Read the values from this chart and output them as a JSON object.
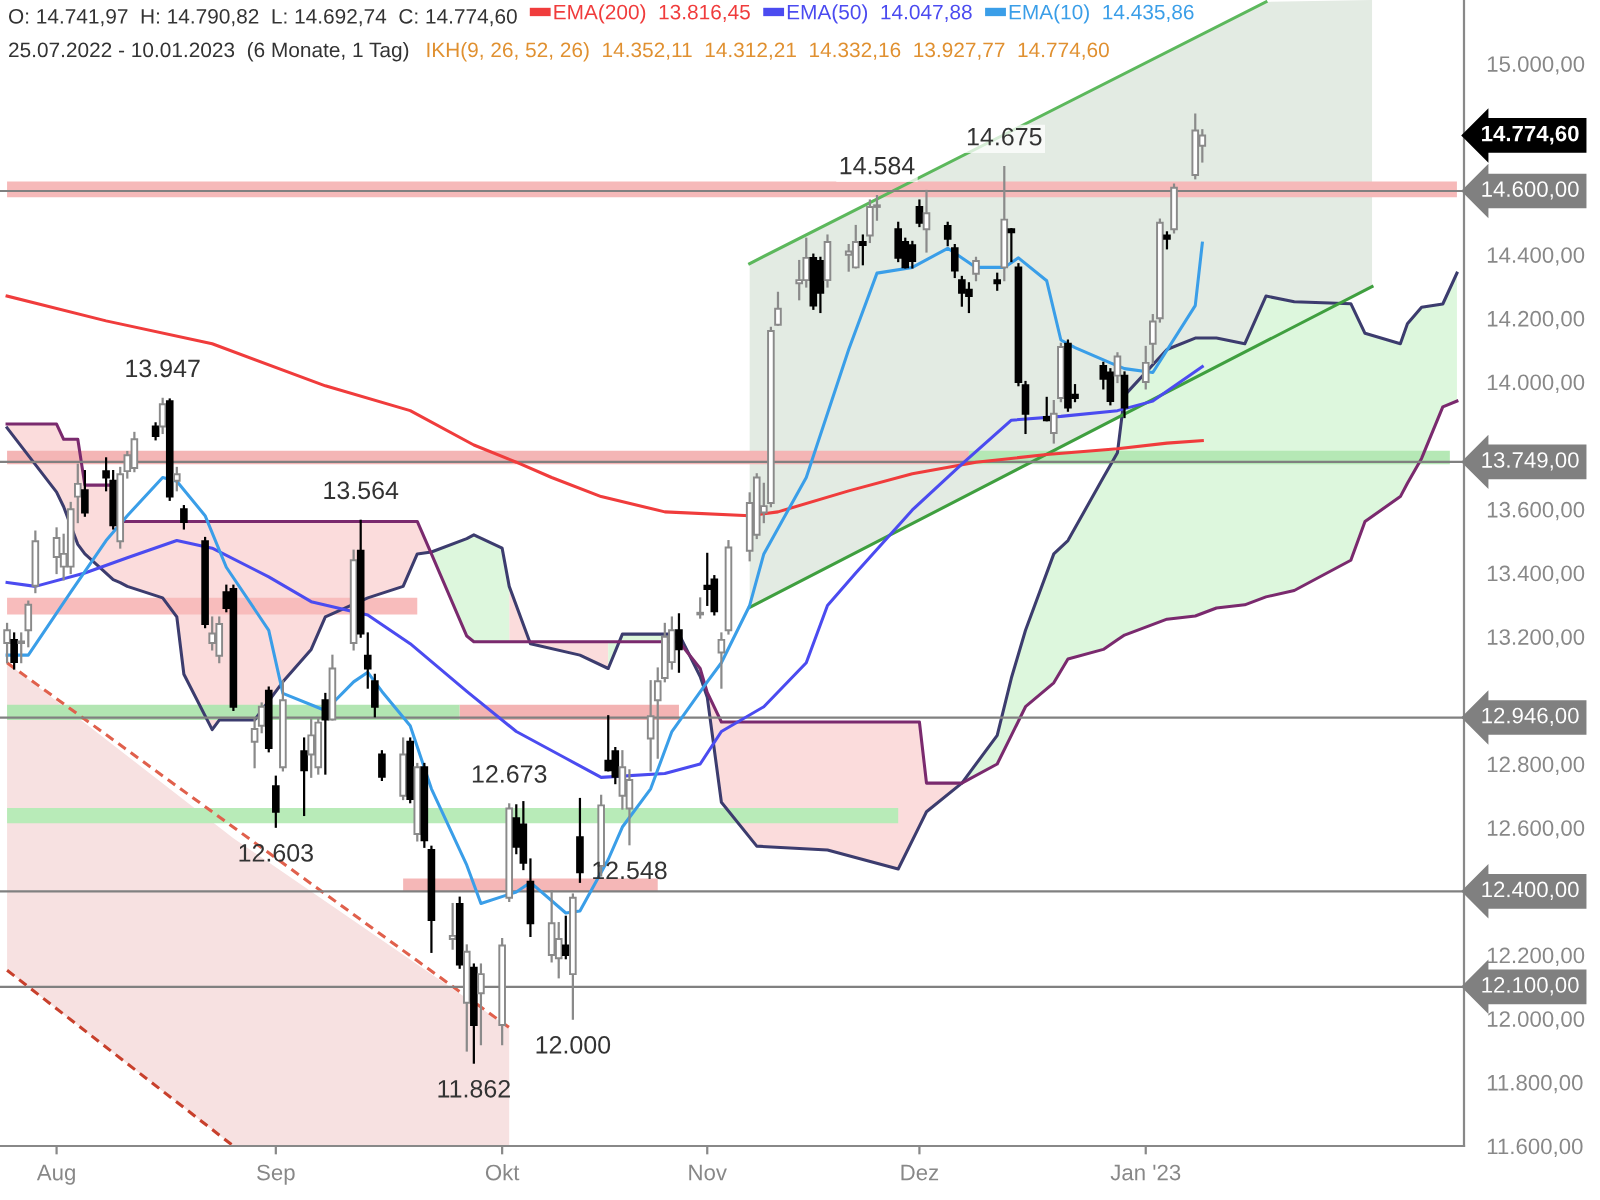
{
  "chart_data": {
    "type": "candlestick",
    "x": [
      "2022-07-25",
      "2022-07-26",
      "2022-07-27",
      "2022-07-28",
      "2022-07-29",
      "2022-08-01",
      "2022-08-02",
      "2022-08-03",
      "2022-08-04",
      "2022-08-05",
      "2022-08-08",
      "2022-08-09",
      "2022-08-10",
      "2022-08-11",
      "2022-08-12",
      "2022-08-15",
      "2022-08-16",
      "2022-08-17",
      "2022-08-18",
      "2022-08-19",
      "2022-08-22",
      "2022-08-23",
      "2022-08-24",
      "2022-08-25",
      "2022-08-26",
      "2022-08-29",
      "2022-08-30",
      "2022-08-31",
      "2022-09-01",
      "2022-09-02",
      "2022-09-05",
      "2022-09-06",
      "2022-09-07",
      "2022-09-08",
      "2022-09-09",
      "2022-09-12",
      "2022-09-13",
      "2022-09-14",
      "2022-09-15",
      "2022-09-16",
      "2022-09-19",
      "2022-09-20",
      "2022-09-21",
      "2022-09-22",
      "2022-09-23",
      "2022-09-26",
      "2022-09-27",
      "2022-09-28",
      "2022-09-29",
      "2022-09-30",
      "2022-10-03",
      "2022-10-04",
      "2022-10-05",
      "2022-10-06",
      "2022-10-07",
      "2022-10-10",
      "2022-10-11",
      "2022-10-12",
      "2022-10-13",
      "2022-10-14",
      "2022-10-17",
      "2022-10-18",
      "2022-10-19",
      "2022-10-20",
      "2022-10-21",
      "2022-10-24",
      "2022-10-25",
      "2022-10-26",
      "2022-10-27",
      "2022-10-28",
      "2022-10-31",
      "2022-11-01",
      "2022-11-02",
      "2022-11-03",
      "2022-11-04",
      "2022-11-07",
      "2022-11-08",
      "2022-11-09",
      "2022-11-10",
      "2022-11-11",
      "2022-11-14",
      "2022-11-15",
      "2022-11-16",
      "2022-11-17",
      "2022-11-18",
      "2022-11-21",
      "2022-11-22",
      "2022-11-23",
      "2022-11-24",
      "2022-11-25",
      "2022-11-28",
      "2022-11-29",
      "2022-11-30",
      "2022-12-01",
      "2022-12-02",
      "2022-12-05",
      "2022-12-06",
      "2022-12-07",
      "2022-12-08",
      "2022-12-09",
      "2022-12-12",
      "2022-12-13",
      "2022-12-14",
      "2022-12-15",
      "2022-12-16",
      "2022-12-19",
      "2022-12-20",
      "2022-12-21",
      "2022-12-22",
      "2022-12-23",
      "2022-12-27",
      "2022-12-28",
      "2022-12-29",
      "2022-12-30",
      "2023-01-02",
      "2023-01-03",
      "2023-01-04",
      "2023-01-05",
      "2023-01-06",
      "2023-01-09",
      "2023-01-10"
    ],
    "xlim": [
      "2022-07-24",
      "2023-02-16"
    ],
    "xticks": [
      {
        "value": "2022-08-01",
        "label": "Aug"
      },
      {
        "value": "2022-09-01",
        "label": "Sep"
      },
      {
        "value": "2022-10-03",
        "label": "Okt"
      },
      {
        "value": "2022-11-01",
        "label": "Nov"
      },
      {
        "value": "2022-12-01",
        "label": "Dez"
      },
      {
        "value": "2023-01-02",
        "label": "Jan '23"
      }
    ],
    "ohlc": [
      [
        13180,
        13240,
        13120,
        13220
      ],
      [
        13190,
        13210,
        13100,
        13120
      ],
      [
        13180,
        13210,
        13120,
        13185
      ],
      [
        13220,
        13310,
        13170,
        13300
      ],
      [
        13360,
        13530,
        13340,
        13500
      ],
      [
        13450,
        13540,
        13400,
        13510
      ],
      [
        13420,
        13520,
        13380,
        13460
      ],
      [
        13420,
        13620,
        13400,
        13600
      ],
      [
        13640,
        13740,
        13560,
        13680
      ],
      [
        13660,
        13720,
        13580,
        13590
      ],
      [
        13720,
        13760,
        13660,
        13700
      ],
      [
        13690,
        13720,
        13540,
        13550
      ],
      [
        13500,
        13730,
        13480,
        13710
      ],
      [
        13720,
        13780,
        13700,
        13770
      ],
      [
        13730,
        13840,
        13720,
        13820
      ],
      [
        13860,
        13870,
        13820,
        13830
      ],
      [
        13860,
        13947,
        13840,
        13930
      ],
      [
        13940,
        13945,
        13630,
        13640
      ],
      [
        13690,
        13730,
        13660,
        13710
      ],
      [
        13600,
        13610,
        13540,
        13560
      ],
      [
        13500,
        13510,
        13230,
        13240
      ],
      [
        13180,
        13260,
        13160,
        13210
      ],
      [
        13140,
        13260,
        13120,
        13240
      ],
      [
        13340,
        13360,
        13280,
        13290
      ],
      [
        13350,
        13360,
        12970,
        12980
      ],
      [
        12870,
        12940,
        12790,
        12910
      ],
      [
        12920,
        12990,
        12900,
        12980
      ],
      [
        13030,
        13040,
        12840,
        12850
      ],
      [
        12730,
        12760,
        12603,
        12650
      ],
      [
        12790,
        13060,
        12780,
        13000
      ],
      [
        12840,
        12880,
        12640,
        12780
      ],
      [
        12830,
        12940,
        12760,
        12890
      ],
      [
        12790,
        12940,
        12770,
        12930
      ],
      [
        13000,
        13020,
        12770,
        12940
      ],
      [
        12940,
        13140,
        12940,
        13100
      ],
      [
        13180,
        13470,
        13160,
        13440
      ],
      [
        13470,
        13564,
        13200,
        13210
      ],
      [
        13140,
        13210,
        13040,
        13100
      ],
      [
        13060,
        13080,
        12950,
        12980
      ],
      [
        12830,
        12840,
        12750,
        12760
      ],
      [
        12700,
        12880,
        12690,
        12830
      ],
      [
        12870,
        12880,
        12680,
        12690
      ],
      [
        12580,
        12800,
        12560,
        12790
      ],
      [
        12790,
        12800,
        12540,
        12560
      ],
      [
        12530,
        12540,
        12210,
        12310
      ],
      [
        12250,
        12360,
        12220,
        12260
      ],
      [
        12360,
        12380,
        12160,
        12170
      ],
      [
        12050,
        12230,
        11900,
        12210
      ],
      [
        12160,
        12170,
        11862,
        11980
      ],
      [
        12080,
        12170,
        11920,
        12140
      ],
      [
        11980,
        12250,
        11920,
        12230
      ],
      [
        12380,
        12673,
        12370,
        12660
      ],
      [
        12630,
        12670,
        12520,
        12540
      ],
      [
        12610,
        12680,
        12470,
        12490
      ],
      [
        12430,
        12500,
        12260,
        12300
      ],
      [
        12200,
        12400,
        12180,
        12300
      ],
      [
        12190,
        12300,
        12130,
        12250
      ],
      [
        12230,
        12320,
        12190,
        12200
      ],
      [
        12140,
        12390,
        12000,
        12380
      ],
      [
        12570,
        12690,
        12430,
        12460
      ],
      [
        12480,
        12700,
        12450,
        12670
      ],
      [
        12810,
        12950,
        12780,
        12780
      ],
      [
        12840,
        12850,
        12740,
        12760
      ],
      [
        12700,
        12840,
        12660,
        12790
      ],
      [
        12660,
        12780,
        12548,
        12750
      ],
      [
        12880,
        13060,
        12780,
        12950
      ],
      [
        13000,
        13100,
        12820,
        13060
      ],
      [
        13070,
        13240,
        13060,
        13200
      ],
      [
        13120,
        13260,
        13100,
        13220
      ],
      [
        13220,
        13270,
        13090,
        13160
      ],
      [
        13270,
        13320,
        13260,
        13275
      ],
      [
        13360,
        13460,
        13300,
        13350
      ],
      [
        13380,
        13390,
        13270,
        13280
      ],
      [
        13150,
        13210,
        13040,
        13190
      ],
      [
        13220,
        13500,
        13210,
        13480
      ],
      [
        13470,
        13650,
        13440,
        13620
      ],
      [
        13520,
        13710,
        13510,
        13700
      ],
      [
        13590,
        13680,
        13560,
        13610
      ],
      [
        13620,
        14170,
        13610,
        14160
      ],
      [
        14180,
        14280,
        14180,
        14230
      ],
      [
        14310,
        14380,
        14260,
        14320
      ],
      [
        14320,
        14450,
        14300,
        14390
      ],
      [
        14390,
        14400,
        14230,
        14240
      ],
      [
        14380,
        14390,
        14220,
        14280
      ],
      [
        14320,
        14460,
        14300,
        14440
      ],
      [
        14400,
        14430,
        14350,
        14410
      ],
      [
        14360,
        14490,
        14360,
        14440
      ],
      [
        14440,
        14460,
        14370,
        14430
      ],
      [
        14460,
        14570,
        14440,
        14550
      ],
      [
        14550,
        14584,
        14510,
        14555
      ],
      [
        14480,
        14500,
        14380,
        14390
      ],
      [
        14440,
        14450,
        14360,
        14360
      ],
      [
        14430,
        14440,
        14360,
        14380
      ],
      [
        14550,
        14570,
        14490,
        14500
      ],
      [
        14480,
        14600,
        14410,
        14530
      ],
      [
        14490,
        14500,
        14430,
        14450
      ],
      [
        14420,
        14430,
        14330,
        14350
      ],
      [
        14320,
        14330,
        14240,
        14280
      ],
      [
        14290,
        14310,
        14220,
        14270
      ],
      [
        14340,
        14390,
        14320,
        14380
      ],
      [
        14320,
        14340,
        14290,
        14310
      ],
      [
        14360,
        14675,
        14320,
        14510
      ],
      [
        14480,
        14480,
        14380,
        14470
      ],
      [
        14360,
        14370,
        13990,
        14000
      ],
      [
        13990,
        14000,
        13840,
        13900
      ],
      [
        13890,
        13950,
        13880,
        13880
      ],
      [
        13840,
        13940,
        13810,
        13900
      ],
      [
        13950,
        14120,
        13940,
        14110
      ],
      [
        14120,
        14130,
        13910,
        13920
      ],
      [
        13960,
        13990,
        13940,
        13950
      ],
      [
        14050,
        14060,
        13980,
        14010
      ],
      [
        14030,
        14040,
        13930,
        13940
      ],
      [
        14020,
        14090,
        14000,
        14080
      ],
      [
        14020,
        14030,
        13890,
        13920
      ],
      [
        14000,
        14110,
        13980,
        14060
      ],
      [
        14120,
        14210,
        14060,
        14190
      ],
      [
        14200,
        14510,
        14190,
        14500
      ],
      [
        14460,
        14470,
        14420,
        14450
      ],
      [
        14480,
        14620,
        14470,
        14610
      ],
      [
        14650,
        14840,
        14640,
        14790
      ],
      [
        14741.97,
        14790.82,
        14692.74,
        14774.6
      ]
    ],
    "series": [
      {
        "type": "line",
        "x": [
          "2022-07-25",
          "2022-08-26",
          "2022-10-04"
        ],
        "values": [
          null,
          null,
          null
        ],
        "lower": [
          12152,
          11600,
          11600
        ],
        "upper": [
          13118,
          12567,
          11972
        ],
        "color": "#f7e1e1"
      },
      {
        "type": "line",
        "x": [
          "2022-11-07",
          "2023-01-19",
          "2023-02-03"
        ],
        "values": [
          null,
          null,
          null
        ],
        "lower": [
          13292,
          14124,
          14300
        ],
        "upper": [
          14372,
          15194,
          15200
        ],
        "color": "#e3ebe3"
      },
      {
        "type": "line",
        "x": [
          "2022-07-25",
          "2023-02-15"
        ],
        "values": [
          null,
          null
        ],
        "lower": [
          14580,
          14580
        ],
        "upper": [
          14630,
          14630
        ],
        "color": "#f6b9b9"
      },
      {
        "type": "line",
        "x": [
          "2022-07-25",
          "2022-12-08"
        ],
        "values": [
          null,
          null
        ],
        "lower": [
          13742,
          13742
        ],
        "upper": [
          13784,
          13784
        ],
        "color": "#f4b5b5"
      },
      {
        "type": "line",
        "x": [
          "2022-12-08",
          "2023-02-14"
        ],
        "values": [
          null,
          null
        ],
        "lower": [
          13742,
          13742
        ],
        "upper": [
          13784,
          13784
        ],
        "color": "#b5e8b5"
      },
      {
        "type": "line",
        "x": [
          "2022-07-25",
          "2022-09-21"
        ],
        "values": [
          null,
          null
        ],
        "lower": [
          13270,
          13270
        ],
        "upper": [
          13322,
          13322
        ],
        "color": "#f8bcbc"
      },
      {
        "type": "line",
        "x": [
          "2022-07-25",
          "2022-09-27"
        ],
        "values": [
          null,
          null
        ],
        "lower": [
          12938,
          12938
        ],
        "upper": [
          12986,
          12986
        ],
        "color": "#b2e5b2"
      },
      {
        "type": "line",
        "x": [
          "2022-09-27",
          "2022-10-28"
        ],
        "values": [
          null,
          null
        ],
        "lower": [
          12938,
          12938
        ],
        "upper": [
          12986,
          12986
        ],
        "color": "#f3b3b3"
      },
      {
        "type": "line",
        "x": [
          "2022-07-25",
          "2022-11-28"
        ],
        "values": [
          null,
          null
        ],
        "lower": [
          12614,
          12614
        ],
        "upper": [
          12662,
          12662
        ],
        "color": "#b8ebb8"
      },
      {
        "type": "line",
        "x": [
          "2022-09-19",
          "2022-10-25"
        ],
        "values": [
          null,
          null
        ],
        "lower": [
          12398,
          12398
        ],
        "upper": [
          12440,
          12440
        ],
        "color": "#f5b7b7"
      },
      {
        "type": "line",
        "x": [
          "2022-07-25",
          "2022-08-01",
          "2022-08-02",
          "2022-08-04",
          "2022-08-05",
          "2022-08-09",
          "2022-08-10",
          "2022-08-11",
          "2022-08-16",
          "2022-08-18",
          "2022-08-19",
          "2022-08-23",
          "2022-08-24",
          "2022-08-29",
          "2022-09-02",
          "2022-09-06",
          "2022-09-08",
          "2022-09-14",
          "2022-09-19",
          "2022-09-21",
          "2022-09-23",
          "2022-09-28",
          "2022-09-29",
          "2022-10-03",
          "2022-10-04",
          "2022-10-07",
          "2022-10-14",
          "2022-10-18",
          "2022-10-20",
          "2022-10-28",
          "2022-10-31",
          "2022-11-01",
          "2022-11-03",
          "2022-11-08",
          "2022-11-18",
          "2022-11-28",
          "2022-12-01",
          "2022-12-02",
          "2022-12-07"
        ],
        "values": [
          null,
          null,
          null,
          null,
          null,
          null,
          null,
          null,
          null,
          null,
          null,
          null,
          null,
          null,
          null,
          null,
          null,
          null,
          null,
          null,
          null,
          null,
          null,
          null,
          null,
          null,
          null,
          null,
          null,
          null,
          null,
          null,
          null,
          null,
          null,
          null,
          null,
          null,
          null
        ],
        "lower": [
          13856,
          13654,
          13608,
          13490,
          13460,
          13379,
          13370,
          13358,
          13322,
          13262,
          13082,
          12908,
          12938,
          12938,
          13058,
          13160,
          13262,
          13322,
          13358,
          13460,
          13466,
          null,
          null,
          null,
          13358,
          13178,
          13142,
          13100,
          null,
          null,
          13075,
          13010,
          12680,
          12542,
          12530,
          12470,
          12605,
          12650,
          12740
        ],
        "upper": [
          13868,
          13868,
          13820,
          13820,
          13676,
          13676,
          13562,
          13562,
          13562,
          13562,
          13562,
          13562,
          13562,
          13562,
          13562,
          13562,
          13562,
          13562,
          13562,
          13562,
          13460,
          null,
          null,
          null,
          13184,
          13184,
          13184,
          13184,
          null,
          null,
          13100,
          13025,
          12932,
          12932,
          12932,
          12932,
          12932,
          12740,
          12740
        ],
        "color": "#fbdcdc"
      },
      {
        "type": "line",
        "x": [
          "2022-09-23",
          "2022-09-28",
          "2022-09-29",
          "2022-10-03",
          "2022-10-04",
          "2022-10-07",
          "2022-10-14",
          "2022-10-18",
          "2022-10-20",
          "2022-10-28",
          "2022-10-31",
          "2022-11-01",
          "2022-11-03",
          "2022-11-08",
          "2022-11-18",
          "2022-11-28",
          "2022-12-01",
          "2022-12-02",
          "2022-12-07",
          "2022-12-12",
          "2022-12-14",
          "2022-12-16",
          "2022-12-20",
          "2022-12-22",
          "2022-12-27",
          "2022-12-29",
          "2022-12-30",
          "2023-01-05",
          "2023-01-09",
          "2023-01-12",
          "2023-01-16",
          "2023-01-19",
          "2023-01-23",
          "2023-01-31",
          "2023-02-02",
          "2023-02-07",
          "2023-02-08",
          "2023-02-10",
          "2023-02-13",
          "2023-02-15"
        ],
        "values": [
          null,
          null,
          null,
          null,
          null,
          null,
          null,
          null,
          null,
          null,
          null,
          null,
          null,
          null,
          null,
          null,
          null,
          null,
          null,
          null,
          null,
          null,
          null,
          null,
          null,
          null,
          null,
          null,
          null,
          null,
          null,
          null,
          null,
          null,
          null,
          null,
          null,
          null,
          null,
          null
        ],
        "lower": [
          13460,
          13202,
          13184,
          13184,
          13184,
          null,
          null,
          13184,
          13184,
          13184,
          13100,
          null,
          null,
          null,
          null,
          null,
          null,
          null,
          12740,
          12800,
          12890,
          12980,
          13055,
          13130,
          13160,
          13190,
          13205,
          13255,
          13265,
          13290,
          13300,
          13325,
          13345,
          13440,
          13562,
          13640,
          13682,
          13760,
          13922,
          13940
        ],
        "upper": [
          13466,
          13508,
          13520,
          13478,
          13358,
          null,
          null,
          13100,
          13208,
          13208,
          13075,
          null,
          null,
          null,
          null,
          null,
          null,
          null,
          12740,
          12890,
          13070,
          13220,
          13460,
          13502,
          13700,
          13778,
          13958,
          14102,
          14138,
          14138,
          14120,
          14270,
          14252,
          14246,
          14153,
          14120,
          14183,
          14235,
          14245,
          14342
        ],
        "color": "#ddf7dd"
      },
      {
        "type": "line",
        "x": [
          "2022-07-25",
          "2022-08-01",
          "2022-08-02",
          "2022-08-04",
          "2022-08-05",
          "2022-08-09",
          "2022-08-10",
          "2022-08-11",
          "2022-08-16",
          "2022-08-18",
          "2022-08-19",
          "2022-08-23",
          "2022-08-24",
          "2022-08-29",
          "2022-09-02",
          "2022-09-06",
          "2022-09-08",
          "2022-09-14",
          "2022-09-19",
          "2022-09-21",
          "2022-09-23",
          "2022-09-28",
          "2022-09-29",
          "2022-10-03",
          "2022-10-04",
          "2022-10-07",
          "2022-10-14",
          "2022-10-18",
          "2022-10-20",
          "2022-10-28",
          "2022-10-31",
          "2022-11-01",
          "2022-11-03",
          "2022-11-08",
          "2022-11-18",
          "2022-11-28",
          "2022-12-01",
          "2022-12-02",
          "2022-12-07",
          "2022-12-12",
          "2022-12-14",
          "2022-12-16",
          "2022-12-20",
          "2022-12-22",
          "2022-12-27",
          "2022-12-29",
          "2022-12-30",
          "2023-01-05",
          "2023-01-09",
          "2023-01-12",
          "2023-01-16",
          "2023-01-19",
          "2023-01-23",
          "2023-01-31",
          "2023-02-02",
          "2023-02-07",
          "2023-02-08",
          "2023-02-10",
          "2023-02-13",
          "2023-02-15"
        ],
        "values": [
          13856,
          13654,
          13608,
          13490,
          13460,
          13379,
          13370,
          13358,
          13322,
          13262,
          13082,
          12908,
          12938,
          12938,
          13058,
          13160,
          13262,
          13322,
          13358,
          13460,
          13466,
          13508,
          13520,
          13478,
          13358,
          13178,
          13142,
          13100,
          13208,
          13208,
          13075,
          13010,
          12680,
          12542,
          12530,
          12470,
          12605,
          12650,
          12740,
          12890,
          13070,
          13220,
          13460,
          13502,
          13700,
          13778,
          13958,
          14102,
          14138,
          14138,
          14120,
          14270,
          14252,
          14246,
          14153,
          14120,
          14183,
          14235,
          14245,
          14342
        ],
        "color": "#3c3c6e"
      },
      {
        "type": "line",
        "x": [
          "2022-07-25",
          "2022-08-01",
          "2022-08-02",
          "2022-08-04",
          "2022-08-05",
          "2022-08-09",
          "2022-08-10",
          "2022-08-11",
          "2022-08-16",
          "2022-08-18",
          "2022-08-19",
          "2022-08-23",
          "2022-08-24",
          "2022-08-29",
          "2022-09-02",
          "2022-09-06",
          "2022-09-08",
          "2022-09-14",
          "2022-09-19",
          "2022-09-21",
          "2022-09-23",
          "2022-09-28",
          "2022-09-29",
          "2022-10-03",
          "2022-10-04",
          "2022-10-07",
          "2022-10-14",
          "2022-10-18",
          "2022-10-20",
          "2022-10-28",
          "2022-10-31",
          "2022-11-01",
          "2022-11-03",
          "2022-11-08",
          "2022-11-18",
          "2022-11-28",
          "2022-12-01",
          "2022-12-02",
          "2022-12-07",
          "2022-12-12",
          "2022-12-14",
          "2022-12-16",
          "2022-12-20",
          "2022-12-22",
          "2022-12-27",
          "2022-12-29",
          "2022-12-30",
          "2023-01-05",
          "2023-01-09",
          "2023-01-12",
          "2023-01-16",
          "2023-01-19",
          "2023-01-23",
          "2023-01-31",
          "2023-02-02",
          "2023-02-07",
          "2023-02-08",
          "2023-02-10",
          "2023-02-13",
          "2023-02-15"
        ],
        "values": [
          13868,
          13868,
          13820,
          13820,
          13676,
          13676,
          13562,
          13562,
          13562,
          13562,
          13562,
          13562,
          13562,
          13562,
          13562,
          13562,
          13562,
          13562,
          13562,
          13562,
          13460,
          13202,
          13184,
          13184,
          13184,
          13184,
          13184,
          13184,
          13184,
          13184,
          13100,
          13025,
          12932,
          12932,
          12932,
          12932,
          12932,
          12740,
          12740,
          12800,
          12890,
          12980,
          13055,
          13130,
          13160,
          13190,
          13205,
          13255,
          13265,
          13290,
          13300,
          13325,
          13345,
          13440,
          13562,
          13640,
          13682,
          13760,
          13922,
          13940
        ],
        "color": "#7a2a6e"
      },
      {
        "type": "line",
        "x": [
          "2022-07-25",
          "2022-10-04"
        ],
        "values": [
          13118,
          11972
        ],
        "color": "#e0604c",
        "line_style": "dashed"
      },
      {
        "type": "line",
        "x": [
          "2022-07-25",
          "2022-08-26"
        ],
        "values": [
          12152,
          11600
        ],
        "color": "#c8402c",
        "line_style": "dashed"
      },
      {
        "type": "line",
        "x": [
          "2022-11-07",
          "2023-01-19"
        ],
        "values": [
          14372,
          15194
        ],
        "color": "#5cb85c"
      },
      {
        "type": "line",
        "x": [
          "2022-11-07",
          "2023-02-03"
        ],
        "values": [
          13292,
          14300
        ],
        "color": "#3f9f3f"
      },
      {
        "type": "line",
        "name": "EMA(200)  13.816,45",
        "x": [
          "2022-07-25",
          "2022-08-08",
          "2022-08-23",
          "2022-09-08",
          "2022-09-20",
          "2022-09-29",
          "2022-10-05",
          "2022-10-10",
          "2022-10-17",
          "2022-10-26",
          "2022-11-07",
          "2022-11-11",
          "2022-11-21",
          "2022-11-30",
          "2022-12-09",
          "2022-12-19",
          "2022-12-29",
          "2023-01-05",
          "2023-01-10"
        ],
        "values": [
          14270,
          14192,
          14120,
          13988,
          13910,
          13802,
          13748,
          13700,
          13640,
          13592,
          13580,
          13592,
          13658,
          13712,
          13748,
          13772,
          13790,
          13808,
          13816
        ],
        "color": "#f03c3c"
      },
      {
        "type": "line",
        "name": "EMA(50)  14.047,88",
        "x": [
          "2022-07-25",
          "2022-07-29",
          "2022-08-05",
          "2022-08-11",
          "2022-08-18",
          "2022-08-23",
          "2022-08-31",
          "2022-09-06",
          "2022-09-14",
          "2022-09-20",
          "2022-09-28",
          "2022-10-05",
          "2022-10-12",
          "2022-10-17",
          "2022-10-26",
          "2022-10-31",
          "2022-11-03",
          "2022-11-09",
          "2022-11-15",
          "2022-11-18",
          "2022-11-22",
          "2022-11-30",
          "2022-12-07",
          "2022-12-14",
          "2022-12-21",
          "2022-12-29",
          "2023-01-03",
          "2023-01-10"
        ],
        "values": [
          13370,
          13358,
          13400,
          13448,
          13502,
          13478,
          13388,
          13310,
          13268,
          13178,
          13028,
          12902,
          12818,
          12758,
          12770,
          12800,
          12902,
          12980,
          13118,
          13298,
          13400,
          13598,
          13742,
          13880,
          13892,
          13910,
          13940,
          14048
        ],
        "color": "#4b4bf0"
      },
      {
        "type": "line",
        "name": "EMA(10)  14.435,86",
        "x": [
          "2022-07-25",
          "2022-07-28",
          "2022-08-03",
          "2022-08-08",
          "2022-08-11",
          "2022-08-16",
          "2022-08-18",
          "2022-08-22",
          "2022-08-25",
          "2022-08-31",
          "2022-09-02",
          "2022-09-08",
          "2022-09-12",
          "2022-09-14",
          "2022-09-16",
          "2022-09-20",
          "2022-09-23",
          "2022-09-28",
          "2022-09-30",
          "2022-10-05",
          "2022-10-07",
          "2022-10-12",
          "2022-10-14",
          "2022-10-18",
          "2022-10-20",
          "2022-10-24",
          "2022-10-27",
          "2022-11-01",
          "2022-11-03",
          "2022-11-07",
          "2022-11-09",
          "2022-11-15",
          "2022-11-21",
          "2022-11-25",
          "2022-11-30",
          "2022-12-05",
          "2022-12-09",
          "2022-12-13",
          "2022-12-15",
          "2022-12-19",
          "2022-12-21",
          "2022-12-23",
          "2022-12-28",
          "2022-12-30",
          "2023-01-03",
          "2023-01-09",
          "2023-01-10"
        ],
        "values": [
          13142,
          13142,
          13340,
          13502,
          13580,
          13700,
          13688,
          13580,
          13418,
          13220,
          13022,
          12968,
          13058,
          13088,
          13028,
          12920,
          12722,
          12482,
          12362,
          12398,
          12428,
          12332,
          12338,
          12500,
          12602,
          12722,
          12902,
          13058,
          13118,
          13298,
          13460,
          13700,
          14102,
          14342,
          14360,
          14420,
          14360,
          14360,
          14390,
          14318,
          14132,
          14108,
          14060,
          14042,
          14030,
          14240,
          14436
        ],
        "color": "#3a9ee8"
      }
    ],
    "ylim": [
      11600,
      15200
    ],
    "yticks": [
      {
        "value": 11600,
        "label": "11.600,00"
      },
      {
        "value": 11800,
        "label": "11.800,00"
      },
      {
        "value": 12000,
        "label": "12.000,00"
      },
      {
        "value": 12200,
        "label": "12.200,00"
      },
      {
        "value": 12600,
        "label": "12.600,00"
      },
      {
        "value": 12800,
        "label": "12.800,00"
      },
      {
        "value": 13200,
        "label": "13.200,00"
      },
      {
        "value": 13400,
        "label": "13.400,00"
      },
      {
        "value": 13600,
        "label": "13.600,00"
      },
      {
        "value": 14000,
        "label": "14.000,00"
      },
      {
        "value": 14200,
        "label": "14.200,00"
      },
      {
        "value": 14400,
        "label": "14.400,00"
      },
      {
        "value": 15000,
        "label": "15.000,00"
      }
    ],
    "ref_lines": [
      {
        "axis": "y",
        "value": 14600,
        "label": "14.600,00",
        "color": "#808080"
      },
      {
        "axis": "y",
        "value": 13749,
        "label": "13.749,00",
        "color": "#808080"
      },
      {
        "axis": "y",
        "value": 12946,
        "label": "12.946,00",
        "color": "#808080"
      },
      {
        "axis": "y",
        "value": 12400,
        "label": "12.400,00",
        "color": "#808080"
      },
      {
        "axis": "y",
        "value": 12100,
        "label": "12.100,00",
        "color": "#808080"
      }
    ],
    "annotations": [
      "O: 14.741,97  H: 14.790,82  L: 14.692,74  C: 14.774,60",
      "25.07.2022 - 10.01.2023  (6 Monate, 1 Tag)",
      "IKH(9, 26, 52, 26)  14.352,11  14.312,21  14.332,16  13.927,77  14.774,60",
      {
        "text": "13.947",
        "y": 13947
      },
      {
        "text": "13.564",
        "y": 13564
      },
      {
        "text": "12.603",
        "y": 12603
      },
      {
        "text": "11.862",
        "y": 11862
      },
      {
        "text": "12.673",
        "y": 12673
      },
      {
        "text": "12.000",
        "y": 12000
      },
      {
        "text": "12.548",
        "y": 12548
      },
      {
        "text": "14.584",
        "y": 14584
      },
      {
        "text": "14.675",
        "y": 14675
      },
      "14.774,60"
    ],
    "legend": "top"
  }
}
